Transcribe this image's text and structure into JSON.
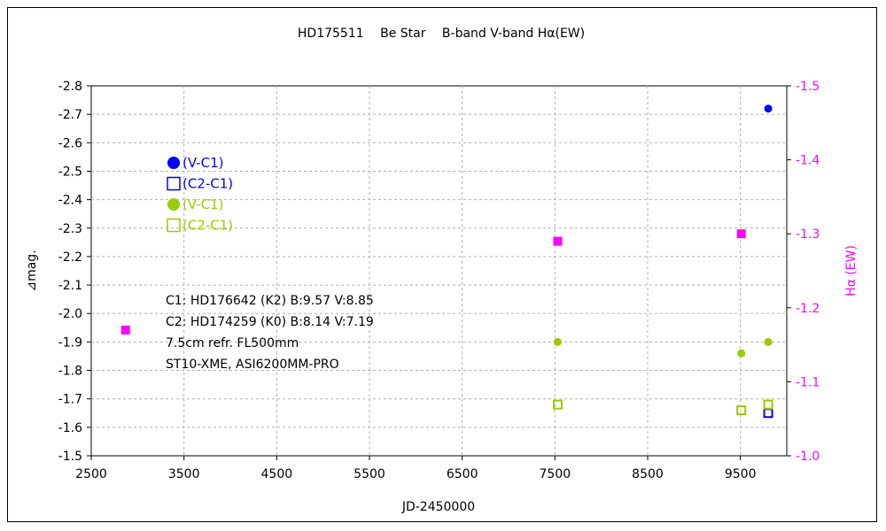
{
  "chart_data": {
    "type": "scatter",
    "title": "HD175511　 Be Star　 B-band  V-band  Hα(EW)",
    "xlabel": "JD-2450000",
    "ylabel_left": "⊿mag.",
    "ylabel_right": "Hα (EW)",
    "xlim": [
      2500,
      10000
    ],
    "ylim_left": [
      -1.5,
      -2.8
    ],
    "ylim_right": [
      -1.0,
      -1.5
    ],
    "x_ticks": [
      "2500",
      "3500",
      "4500",
      "5500",
      "6500",
      "7500",
      "8500",
      "9500"
    ],
    "x_tick_values": [
      2500,
      3500,
      4500,
      5500,
      6500,
      7500,
      8500,
      9500
    ],
    "y_left_ticks": [
      "-2.8",
      "-2.7",
      "-2.6",
      "-2.5",
      "-2.4",
      "-2.3",
      "-2.2",
      "-2.1",
      "-2.0",
      "-1.9",
      "-1.8",
      "-1.7",
      "-1.6",
      "-1.5"
    ],
    "y_left_tick_values": [
      -2.8,
      -2.7,
      -2.6,
      -2.5,
      -2.4,
      -2.3,
      -2.2,
      -2.1,
      -2.0,
      -1.9,
      -1.8,
      -1.7,
      -1.6,
      -1.5
    ],
    "y_right_ticks": [
      "-1.5",
      "-1.4",
      "-1.3",
      "-1.2",
      "-1.1",
      "-1.0"
    ],
    "y_right_tick_values": [
      -1.5,
      -1.4,
      -1.3,
      -1.2,
      -1.1,
      -1.0
    ],
    "grid": true,
    "legend_placement": "upper-left",
    "series": [
      {
        "name": "(V-C1)",
        "marker": "filled-circle",
        "color": "#0000ff",
        "axis": "left",
        "x": [
          9800
        ],
        "y": [
          -2.72
        ]
      },
      {
        "name": "(C2-C1)",
        "marker": "open-square",
        "color": "#0000ff",
        "axis": "left",
        "x": [
          9800
        ],
        "y": [
          -1.65
        ]
      },
      {
        "name": "(V-C1)",
        "marker": "filled-circle",
        "color": "#99cc00",
        "axis": "left",
        "x": [
          7530,
          9510,
          9800
        ],
        "y": [
          -1.9,
          -1.86,
          -1.9
        ]
      },
      {
        "name": "(C2-C1)",
        "marker": "open-square",
        "color": "#99cc00",
        "axis": "left",
        "x": [
          7530,
          9510,
          9800
        ],
        "y": [
          -1.68,
          -1.66,
          -1.68
        ]
      },
      {
        "name": "",
        "marker": "filled-square",
        "color": "#ff00ff",
        "axis": "right",
        "x": [
          2870,
          7530,
          9510
        ],
        "y": [
          -1.17,
          -1.29,
          -1.3
        ]
      }
    ],
    "annotation_lines": [
      "C1: HD176642 (K2) B:9.57 V:8.85",
      "C2: HD174259 (K0) B:8.14 V:7.19",
      "7.5cm refr. FL500mm",
      "ST10-XME, ASI6200MM-PRO"
    ]
  }
}
